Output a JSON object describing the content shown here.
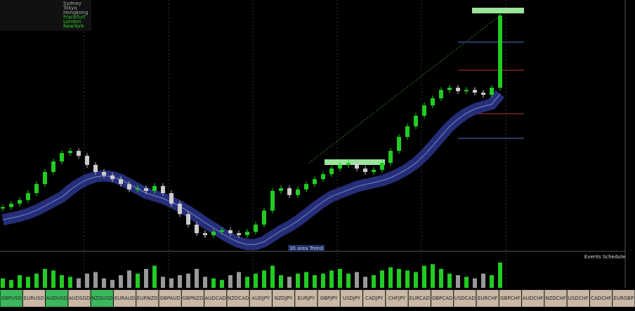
{
  "sessions": [
    "Sydney",
    "Tokyo",
    "Hongkong",
    "Frankfurt",
    "London",
    "NewYork"
  ],
  "trend_label": "30 area Trend",
  "events_title": "Events Schedule",
  "chart_data": {
    "type": "candlestick",
    "ylim": [
      0,
      100
    ],
    "closes": [
      15.7,
      17.1,
      18.6,
      21.4,
      25.1,
      30,
      34.3,
      37.7,
      38.6,
      36.6,
      32.9,
      30,
      28.6,
      27.1,
      25.1,
      22.9,
      23.4,
      22.3,
      24.3,
      21.4,
      17.1,
      12.9,
      8.6,
      5.1,
      4.3,
      5.7,
      6.3,
      5.1,
      4.3,
      5.7,
      8.6,
      14.3,
      22.3,
      23.4,
      20.6,
      22.9,
      25.1,
      27.1,
      29.1,
      31.4,
      32.9,
      33.7,
      31.4,
      30,
      30.9,
      33.7,
      38.6,
      44.3,
      48.6,
      52.9,
      57.1,
      60,
      63.4,
      64.3,
      62.9,
      63.4,
      62.3,
      61.4,
      64.3,
      93.7
    ],
    "volume_ylim": [
      0,
      100
    ],
    "volumes": [
      30,
      25,
      40,
      35,
      45,
      60,
      55,
      40,
      35,
      30,
      45,
      50,
      30,
      25,
      40,
      55,
      45,
      60,
      70,
      35,
      30,
      40,
      45,
      60,
      35,
      30,
      25,
      40,
      50,
      35,
      45,
      55,
      70,
      40,
      35,
      45,
      50,
      40,
      45,
      55,
      60,
      45,
      50,
      35,
      40,
      55,
      65,
      60,
      55,
      50,
      70,
      75,
      60,
      45,
      40,
      35,
      30,
      45,
      40,
      80
    ]
  },
  "tabs": [
    {
      "label": "GBPUSD",
      "highlighted": true
    },
    {
      "label": "EURUSD",
      "highlighted": false
    },
    {
      "label": "AUDUSD",
      "highlighted": true
    },
    {
      "label": "AUDSGD",
      "highlighted": false
    },
    {
      "label": "NZDUSD",
      "highlighted": true
    },
    {
      "label": "EURAUD",
      "highlighted": false
    },
    {
      "label": "EURNZD",
      "highlighted": false
    },
    {
      "label": "GBPAUD",
      "highlighted": false
    },
    {
      "label": "GBPNZD",
      "highlighted": false
    },
    {
      "label": "AUDCAD",
      "highlighted": false
    },
    {
      "label": "NZDCAD",
      "highlighted": false
    },
    {
      "label": "AUDJPY",
      "highlighted": false
    },
    {
      "label": "NZDJPY",
      "highlighted": false
    },
    {
      "label": "EURJPY",
      "highlighted": false
    },
    {
      "label": "GBPJPY",
      "highlighted": false
    },
    {
      "label": "USDJPY",
      "highlighted": false
    },
    {
      "label": "CADJPY",
      "highlighted": false
    },
    {
      "label": "CHFJPY",
      "highlighted": false
    },
    {
      "label": "EURCAD",
      "highlighted": false
    },
    {
      "label": "GBPCAD",
      "highlighted": false
    },
    {
      "label": "USDCAD",
      "highlighted": false
    },
    {
      "label": "EURCHF",
      "highlighted": false
    },
    {
      "label": "GBPCHF",
      "highlighted": false
    },
    {
      "label": "AUDCHF",
      "highlighted": false
    },
    {
      "label": "NZDCHF",
      "highlighted": false
    },
    {
      "label": "USDCHF",
      "highlighted": false
    },
    {
      "label": "CADCHF",
      "highlighted": false
    },
    {
      "label": "EURGBP",
      "highlighted": false
    }
  ]
}
